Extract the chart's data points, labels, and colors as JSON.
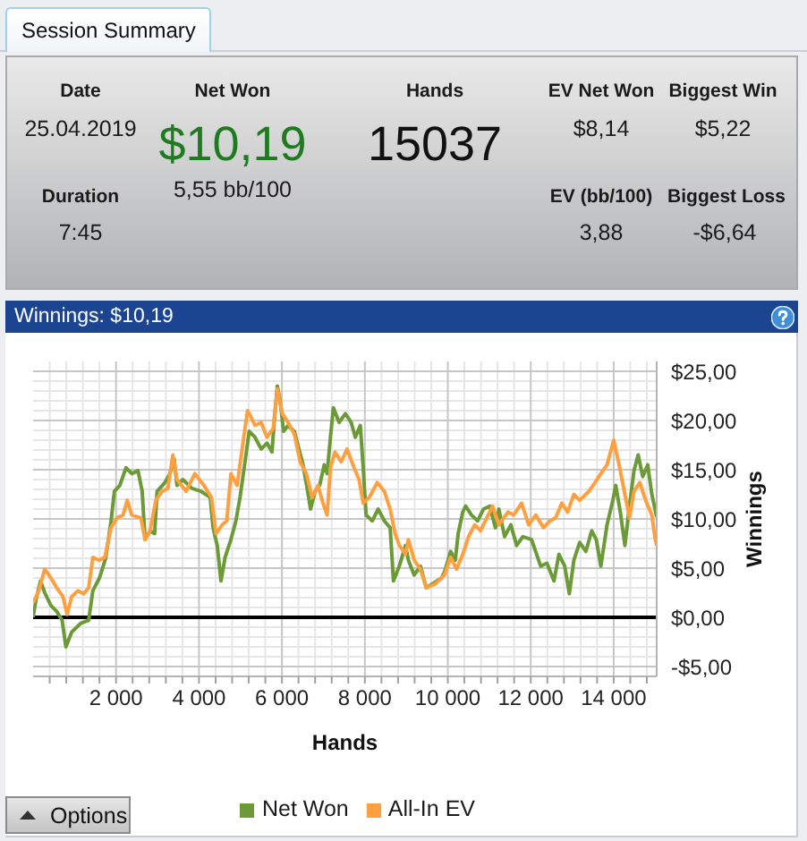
{
  "chart_data": [
    {
      "type": "other",
      "title": "Session Summary",
      "annotations": [
        "Date",
        "25.04.2019",
        "Net Won",
        "$10,19",
        "5,55 bb/100",
        "Hands",
        "15037",
        "EV Net Won",
        "$8,14",
        "Biggest Win",
        "$5,22",
        "Duration",
        "7:45",
        "EV (bb/100)",
        "3,88",
        "Biggest Loss",
        "-$6,64"
      ]
    },
    {
      "type": "line",
      "title": "Winnings: $10,19",
      "xlabel": "Hands",
      "ylabel": "Winnings",
      "annotations": [
        "Options"
      ],
      "xlim": [
        0,
        15037
      ],
      "ylim": [
        -6,
        26
      ],
      "xticks": [
        {
          "value": 400,
          "label": null
        },
        {
          "value": 800,
          "label": null
        },
        {
          "value": 1200,
          "label": null
        },
        {
          "value": 1600,
          "label": null
        },
        {
          "value": 2000,
          "label": "2 000"
        },
        {
          "value": 2400,
          "label": null
        },
        {
          "value": 2800,
          "label": null
        },
        {
          "value": 3200,
          "label": null
        },
        {
          "value": 3600,
          "label": null
        },
        {
          "value": 4000,
          "label": "4 000"
        },
        {
          "value": 4400,
          "label": null
        },
        {
          "value": 4800,
          "label": null
        },
        {
          "value": 5200,
          "label": null
        },
        {
          "value": 5600,
          "label": null
        },
        {
          "value": 6000,
          "label": "6 000"
        },
        {
          "value": 6400,
          "label": null
        },
        {
          "value": 6800,
          "label": null
        },
        {
          "value": 7200,
          "label": null
        },
        {
          "value": 7600,
          "label": null
        },
        {
          "value": 8000,
          "label": "8 000"
        },
        {
          "value": 8400,
          "label": null
        },
        {
          "value": 8800,
          "label": null
        },
        {
          "value": 9200,
          "label": null
        },
        {
          "value": 9600,
          "label": null
        },
        {
          "value": 10000,
          "label": "10 000"
        },
        {
          "value": 10400,
          "label": null
        },
        {
          "value": 10800,
          "label": null
        },
        {
          "value": 11200,
          "label": null
        },
        {
          "value": 11600,
          "label": null
        },
        {
          "value": 12000,
          "label": "12 000"
        },
        {
          "value": 12400,
          "label": null
        },
        {
          "value": 12800,
          "label": null
        },
        {
          "value": 13200,
          "label": null
        },
        {
          "value": 13600,
          "label": null
        },
        {
          "value": 14000,
          "label": "14 000"
        },
        {
          "value": 14400,
          "label": null
        },
        {
          "value": 14800,
          "label": null
        }
      ],
      "yticks": [
        {
          "value": -5,
          "label": "-$5,00"
        },
        {
          "value": -4,
          "label": null
        },
        {
          "value": -3,
          "label": null
        },
        {
          "value": -2,
          "label": null
        },
        {
          "value": -1,
          "label": null
        },
        {
          "value": 0,
          "label": "$0,00"
        },
        {
          "value": 1,
          "label": null
        },
        {
          "value": 2,
          "label": null
        },
        {
          "value": 3,
          "label": null
        },
        {
          "value": 4,
          "label": null
        },
        {
          "value": 5,
          "label": "$5,00"
        },
        {
          "value": 6,
          "label": null
        },
        {
          "value": 7,
          "label": null
        },
        {
          "value": 8,
          "label": null
        },
        {
          "value": 9,
          "label": null
        },
        {
          "value": 10,
          "label": "$10,00"
        },
        {
          "value": 11,
          "label": null
        },
        {
          "value": 12,
          "label": null
        },
        {
          "value": 13,
          "label": null
        },
        {
          "value": 14,
          "label": null
        },
        {
          "value": 15,
          "label": "$15,00"
        },
        {
          "value": 16,
          "label": null
        },
        {
          "value": 17,
          "label": null
        },
        {
          "value": 18,
          "label": null
        },
        {
          "value": 19,
          "label": null
        },
        {
          "value": 20,
          "label": "$20,00"
        },
        {
          "value": 21,
          "label": null
        },
        {
          "value": 22,
          "label": null
        },
        {
          "value": 23,
          "label": null
        },
        {
          "value": 24,
          "label": null
        },
        {
          "value": 25,
          "label": "$25,00"
        }
      ],
      "grid": true,
      "legend": "bottom",
      "ref_lines": [
        {
          "axis": "y",
          "value": 0,
          "color": "#000000"
        }
      ],
      "series": [
        {
          "name": "Net Won",
          "color": "#6b9a36",
          "x": [
            0,
            70,
            180,
            280,
            430,
            570,
            700,
            790,
            930,
            1150,
            1340,
            1440,
            1600,
            1750,
            1880,
            1960,
            2090,
            2240,
            2380,
            2530,
            2630,
            2700,
            2820,
            2930,
            2990,
            3180,
            3300,
            3400,
            3470,
            3610,
            3830,
            4050,
            4270,
            4340,
            4440,
            4530,
            4630,
            4770,
            4890,
            4990,
            5110,
            5210,
            5350,
            5500,
            5640,
            5760,
            5830,
            5890,
            5960,
            6040,
            6150,
            6300,
            6410,
            6510,
            6620,
            6690,
            6800,
            6910,
            7020,
            7090,
            7170,
            7240,
            7380,
            7530,
            7670,
            7770,
            7890,
            7960,
            8030,
            8180,
            8320,
            8470,
            8610,
            8690,
            8830,
            8980,
            9050,
            9190,
            9340,
            9480,
            9630,
            9850,
            9920,
            10070,
            10180,
            10250,
            10360,
            10430,
            10570,
            10720,
            10860,
            11010,
            11150,
            11230,
            11370,
            11520,
            11660,
            11810,
            12020,
            12240,
            12390,
            12560,
            12680,
            12820,
            12930,
            13040,
            13180,
            13330,
            13470,
            13580,
            13690,
            13840,
            13980,
            14050,
            14160,
            14270,
            14380,
            14490,
            14590,
            14700,
            14820,
            14920,
            15037
          ],
          "values": [
            0,
            1.8,
            3.7,
            2.5,
            1.2,
            0.6,
            -0.3,
            -3.0,
            -1.5,
            -0.6,
            -0.3,
            2.7,
            4.0,
            6.0,
            9.8,
            12.8,
            13.4,
            15.2,
            14.6,
            14.9,
            12.8,
            7.9,
            8.8,
            8.5,
            12.8,
            13.7,
            14.6,
            16.1,
            13.4,
            14.0,
            13.1,
            12.8,
            12.2,
            9.1,
            7.3,
            3.7,
            6.1,
            7.9,
            9.8,
            12.2,
            15.8,
            18.9,
            18.3,
            17.1,
            17.7,
            16.8,
            20.7,
            23.5,
            21.9,
            18.9,
            19.5,
            18.9,
            17.1,
            15.5,
            12.8,
            11.0,
            12.8,
            13.4,
            15.5,
            14.6,
            18.3,
            21.3,
            19.8,
            20.7,
            19.8,
            18.3,
            19.5,
            15.2,
            10.4,
            9.8,
            11.0,
            9.8,
            9.1,
            3.7,
            5.2,
            7.3,
            5.8,
            4.3,
            5.2,
            3.0,
            3.4,
            4.0,
            4.6,
            6.7,
            5.8,
            8.5,
            10.7,
            11.3,
            10.4,
            9.8,
            11.0,
            11.3,
            9.1,
            11.0,
            8.2,
            9.4,
            7.3,
            8.2,
            7.9,
            5.2,
            5.5,
            3.7,
            6.4,
            5.2,
            2.4,
            5.8,
            7.6,
            6.7,
            8.8,
            7.9,
            5.2,
            9.4,
            11.9,
            13.4,
            10.7,
            7.3,
            11.3,
            14.9,
            16.5,
            14.3,
            15.5,
            12.5,
            10.2
          ]
        },
        {
          "name": "All-In EV",
          "color": "#ffa040",
          "x": [
            0,
            140,
            280,
            430,
            570,
            720,
            820,
            930,
            1080,
            1220,
            1340,
            1440,
            1590,
            1730,
            1880,
            2020,
            2170,
            2270,
            2380,
            2600,
            2700,
            2820,
            2960,
            3110,
            3250,
            3370,
            3470,
            3690,
            3900,
            4120,
            4300,
            4410,
            4560,
            4670,
            4770,
            4920,
            5060,
            5170,
            5250,
            5350,
            5500,
            5640,
            5790,
            5890,
            6010,
            6150,
            6300,
            6440,
            6590,
            6730,
            6870,
            6990,
            7090,
            7170,
            7280,
            7430,
            7570,
            7740,
            7860,
            7960,
            8110,
            8300,
            8470,
            8610,
            8730,
            8830,
            8980,
            9050,
            9190,
            9340,
            9480,
            9700,
            9920,
            10070,
            10210,
            10360,
            10500,
            10650,
            10790,
            10940,
            11080,
            11230,
            11450,
            11590,
            11780,
            11950,
            12120,
            12310,
            12460,
            12600,
            12750,
            12890,
            13040,
            13180,
            13400,
            13550,
            13690,
            13840,
            14000,
            14130,
            14270,
            14380,
            14490,
            14630,
            14770,
            14920,
            14990,
            15037
          ],
          "values": [
            1.5,
            2.7,
            4.9,
            4.0,
            3.0,
            2.1,
            0.3,
            2.1,
            2.7,
            2.4,
            3.0,
            6.1,
            5.8,
            6.1,
            9.1,
            10.1,
            10.4,
            11.9,
            10.4,
            10.1,
            7.9,
            8.8,
            11.9,
            12.8,
            13.1,
            16.5,
            14.0,
            12.8,
            14.6,
            13.4,
            12.2,
            8.5,
            9.4,
            9.8,
            14.6,
            13.4,
            17.7,
            21.0,
            20.4,
            19.5,
            19.8,
            18.3,
            19.2,
            23.2,
            20.7,
            19.8,
            18.6,
            15.8,
            14.6,
            12.2,
            13.4,
            11.6,
            10.4,
            15.2,
            16.8,
            15.8,
            17.1,
            15.2,
            14.0,
            11.6,
            12.2,
            13.7,
            12.8,
            11.0,
            8.5,
            7.3,
            6.4,
            7.9,
            5.8,
            4.9,
            3.0,
            3.4,
            4.3,
            6.1,
            4.9,
            6.4,
            8.2,
            9.4,
            8.8,
            10.1,
            11.3,
            9.4,
            10.7,
            10.4,
            11.6,
            9.4,
            10.4,
            9.1,
            9.8,
            10.1,
            11.6,
            10.7,
            12.5,
            11.9,
            12.8,
            13.7,
            14.6,
            15.5,
            18.0,
            15.5,
            12.5,
            10.1,
            12.8,
            13.7,
            11.9,
            10.4,
            8.2,
            7.3
          ]
        }
      ]
    }
  ]
}
